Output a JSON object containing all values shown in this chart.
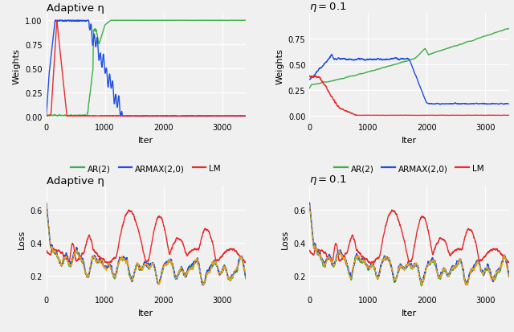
{
  "title_tl": "Adaptive η",
  "title_tr": "η = 0.1",
  "title_bl": "Adaptive η",
  "title_br": "η = 0.1",
  "ylabel_top": "Weights",
  "ylabel_bot": "Loss",
  "xlabel": "Iter",
  "colors": {
    "green": "#3cb043",
    "blue": "#1f4fe0",
    "red": "#e82c2c",
    "orange": "#e8a020"
  },
  "bg_color": "#f0f0f0",
  "n_iter": 3400
}
